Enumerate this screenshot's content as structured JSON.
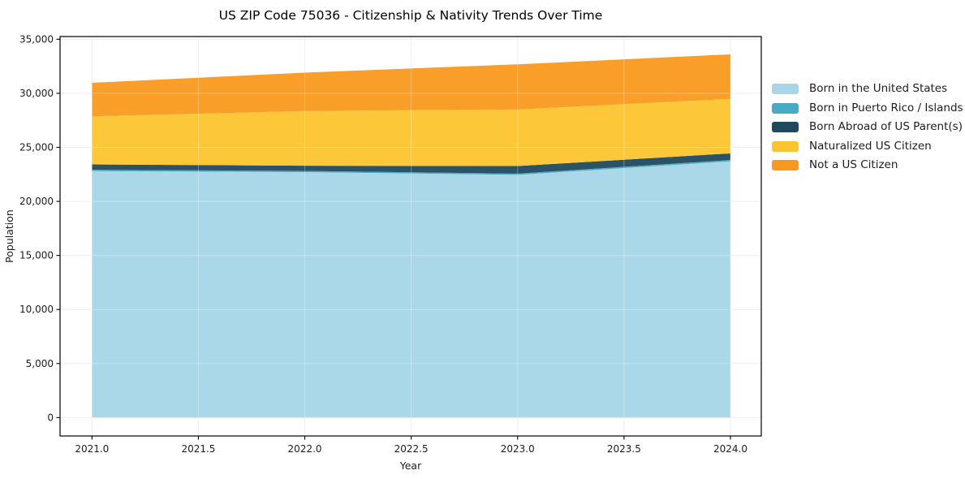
{
  "title": "US ZIP Code 75036 - Citizenship & Nativity Trends Over Time",
  "chart_data": {
    "type": "area",
    "stacked": true,
    "title": "US ZIP Code 75036 - Citizenship & Nativity Trends Over Time",
    "xlabel": "Year",
    "ylabel": "Population",
    "x": [
      2021,
      2022,
      2023,
      2024
    ],
    "series": [
      {
        "name": "Born in the United States",
        "color": "#A7D6E8",
        "values": [
          22800,
          22700,
          22450,
          23700
        ]
      },
      {
        "name": "Born in Puerto Rico / Islands",
        "color": "#46AAC8",
        "values": [
          120,
          120,
          120,
          130
        ]
      },
      {
        "name": "Born Abroad of US Parent(s)",
        "color": "#21495D",
        "values": [
          500,
          480,
          700,
          610
        ]
      },
      {
        "name": "Naturalized US Citizen",
        "color": "#FCC52F",
        "values": [
          4450,
          5060,
          5230,
          5050
        ]
      },
      {
        "name": "Not a US Citizen",
        "color": "#F8991D",
        "values": [
          3100,
          3550,
          4180,
          4110
        ]
      }
    ],
    "stack_totals": [
      30970,
      31910,
      32680,
      33600
    ],
    "xticks": [
      2021.0,
      2021.5,
      2022.0,
      2022.5,
      2023.0,
      2023.5,
      2024.0
    ],
    "xtick_labels": [
      "2021.0",
      "2021.5",
      "2022.0",
      "2022.5",
      "2023.0",
      "2023.5",
      "2024.0"
    ],
    "yticks": [
      0,
      5000,
      10000,
      15000,
      20000,
      25000,
      30000,
      35000
    ],
    "ytick_labels": [
      "0",
      "5,000",
      "10,000",
      "15,000",
      "20,000",
      "25,000",
      "30,000",
      "35,000"
    ],
    "ylim": [
      0,
      35000
    ],
    "grid": true,
    "legend_position": "right-outside",
    "colors": {
      "grid": "#e9e9e9",
      "spine": "#000000",
      "background": "#ffffff"
    }
  }
}
